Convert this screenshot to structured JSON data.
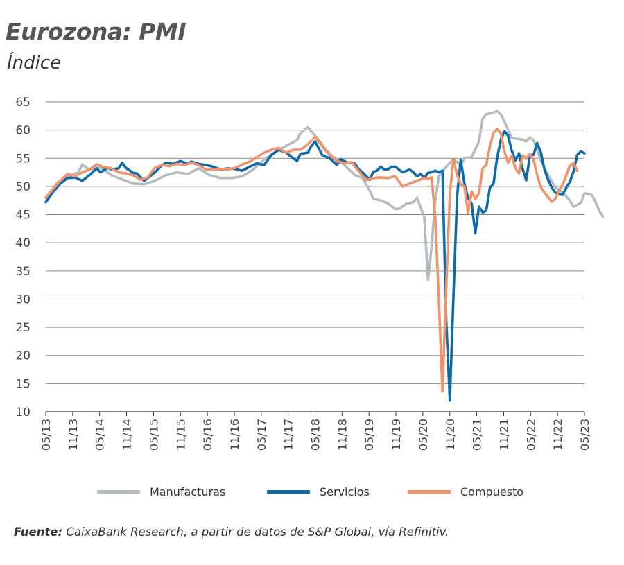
{
  "header": {
    "title": "Eurozona: PMI",
    "subtitle": "Índice"
  },
  "legend": {
    "items": [
      {
        "label": "Manufacturas",
        "color": "#b4bcbf"
      },
      {
        "label": "Servicios",
        "color": "#0f6aa9"
      },
      {
        "label": "Compuesto",
        "color": "#f0926a"
      }
    ]
  },
  "source": {
    "label": "Fuente:",
    "text": "CaixaBank Research, a partir de datos de S&P Global, vía Refinitiv."
  },
  "chart_data": {
    "type": "line",
    "title": "Eurozona: PMI",
    "ylabel": "Índice",
    "xlabel": "",
    "ylim": [
      10,
      65
    ],
    "yticks": [
      10,
      15,
      20,
      25,
      30,
      35,
      40,
      45,
      50,
      55,
      60,
      65
    ],
    "xticks": [
      "05/13",
      "11/13",
      "05/14",
      "11/14",
      "05/15",
      "11/15",
      "05/16",
      "11/16",
      "05/17",
      "11/17",
      "05/18",
      "11/18",
      "05/19",
      "11/19",
      "05/20",
      "11/20",
      "05/21",
      "11/21",
      "05/22",
      "11/22",
      "05/23"
    ],
    "grid": true,
    "legend_position": "bottom",
    "x_range": [
      "05/13",
      "05/23"
    ],
    "x": [
      0,
      4,
      8,
      13,
      18,
      24,
      30,
      36,
      42,
      48,
      54,
      60,
      66,
      72,
      78,
      84,
      90,
      96,
      102,
      108,
      114,
      120
    ],
    "series": [
      {
        "name": "Manufacturas",
        "color": "#b4bcbf",
        "points": [
          [
            0,
            48
          ],
          [
            1,
            48.8
          ],
          [
            3,
            50.5
          ],
          [
            6,
            51.8
          ],
          [
            9,
            52.5
          ],
          [
            10,
            53.9
          ],
          [
            12,
            53
          ],
          [
            15,
            53.4
          ],
          [
            18,
            52
          ],
          [
            20,
            51.5
          ],
          [
            24,
            50.5
          ],
          [
            27,
            50.4
          ],
          [
            30,
            51
          ],
          [
            33,
            52
          ],
          [
            36,
            52.5
          ],
          [
            39,
            52.2
          ],
          [
            42,
            53.2
          ],
          [
            45,
            52
          ],
          [
            48,
            51.5
          ],
          [
            51,
            51.5
          ],
          [
            54,
            51.8
          ],
          [
            57,
            53
          ],
          [
            60,
            54.8
          ],
          [
            63,
            56.1
          ],
          [
            66,
            57.2
          ],
          [
            69,
            58.2
          ],
          [
            70,
            59.5
          ],
          [
            72,
            60.5
          ],
          [
            74,
            59
          ],
          [
            75,
            58.2
          ],
          [
            77,
            56.5
          ],
          [
            79,
            55.2
          ],
          [
            81,
            54.5
          ],
          [
            83,
            53.2
          ],
          [
            85,
            52
          ],
          [
            87,
            51.5
          ],
          [
            89,
            49.2
          ],
          [
            90,
            47.8
          ],
          [
            92,
            47.5
          ],
          [
            94,
            47
          ],
          [
            96,
            46
          ],
          [
            97,
            46
          ],
          [
            99,
            46.9
          ],
          [
            101,
            47.2
          ],
          [
            102,
            48
          ],
          [
            104,
            44.5
          ],
          [
            105,
            33.4
          ],
          [
            106,
            39.4
          ],
          [
            107,
            47.4
          ],
          [
            108,
            51.8
          ],
          [
            110,
            53.5
          ],
          [
            112,
            54.8
          ],
          [
            114,
            53.8
          ],
          [
            115,
            55
          ],
          [
            117,
            55.2
          ],
          [
            119,
            58
          ],
          [
            120,
            62
          ],
          [
            121,
            62.8
          ],
          [
            123,
            63.1
          ],
          [
            124,
            63.4
          ],
          [
            125,
            62.8
          ],
          [
            126,
            61.5
          ],
          [
            128,
            58.6
          ],
          [
            130,
            58.4
          ],
          [
            131,
            58.3
          ],
          [
            132,
            58
          ],
          [
            133,
            58.7
          ],
          [
            134,
            58.2
          ],
          [
            135,
            56.5
          ],
          [
            136,
            54.6
          ],
          [
            138,
            52
          ],
          [
            140,
            49.8
          ],
          [
            142,
            49
          ],
          [
            144,
            47.5
          ],
          [
            145,
            46.4
          ],
          [
            147,
            47.1
          ],
          [
            148,
            48.8
          ],
          [
            150,
            48.5
          ],
          [
            151,
            47.3
          ],
          [
            152,
            45.8
          ],
          [
            153,
            44.6
          ]
        ]
      },
      {
        "name": "Servicios",
        "color": "#0f6aa9",
        "points": [
          [
            0,
            47.2
          ],
          [
            2,
            49
          ],
          [
            4,
            50.5
          ],
          [
            6,
            51.5
          ],
          [
            8,
            51.6
          ],
          [
            10,
            51
          ],
          [
            12,
            52
          ],
          [
            14,
            53.2
          ],
          [
            15,
            52.5
          ],
          [
            17,
            53.3
          ],
          [
            18,
            53
          ],
          [
            20,
            53.2
          ],
          [
            21,
            54.2
          ],
          [
            22,
            53.3
          ],
          [
            24,
            52.4
          ],
          [
            25,
            52.3
          ],
          [
            27,
            51
          ],
          [
            30,
            52.5
          ],
          [
            32,
            53.8
          ],
          [
            33,
            54.2
          ],
          [
            35,
            54
          ],
          [
            37,
            54.5
          ],
          [
            39,
            54
          ],
          [
            40,
            54.4
          ],
          [
            42,
            54
          ],
          [
            44,
            53.8
          ],
          [
            46,
            53.5
          ],
          [
            48,
            53
          ],
          [
            50,
            53.2
          ],
          [
            52,
            53.1
          ],
          [
            54,
            52.8
          ],
          [
            56,
            53.5
          ],
          [
            58,
            54.1
          ],
          [
            60,
            53.8
          ],
          [
            62,
            55.6
          ],
          [
            64,
            56.5
          ],
          [
            66,
            56
          ],
          [
            67,
            55.5
          ],
          [
            68,
            55
          ],
          [
            69,
            54.5
          ],
          [
            70,
            55.8
          ],
          [
            72,
            56
          ],
          [
            73,
            57.2
          ],
          [
            74,
            58
          ],
          [
            76,
            55.5
          ],
          [
            78,
            55
          ],
          [
            80,
            53.8
          ],
          [
            81,
            54.8
          ],
          [
            83,
            54.2
          ],
          [
            85,
            54
          ],
          [
            86,
            53
          ],
          [
            87,
            52.5
          ],
          [
            89,
            51.2
          ],
          [
            90,
            52.6
          ],
          [
            91,
            52.8
          ],
          [
            92,
            53.5
          ],
          [
            93,
            53
          ],
          [
            94,
            53
          ],
          [
            95,
            53.5
          ],
          [
            96,
            53.5
          ],
          [
            97,
            53
          ],
          [
            98,
            52.5
          ],
          [
            100,
            53
          ],
          [
            101,
            52.5
          ],
          [
            102,
            51.8
          ],
          [
            103,
            52.2
          ],
          [
            104,
            51.5
          ],
          [
            105,
            52.4
          ],
          [
            106,
            52.5
          ],
          [
            107,
            52.8
          ],
          [
            108,
            52.5
          ],
          [
            109,
            52.8
          ],
          [
            110,
            26.4
          ],
          [
            111,
            12
          ],
          [
            112,
            30.5
          ],
          [
            113,
            48.3
          ],
          [
            114,
            54.7
          ],
          [
            115,
            50.5
          ],
          [
            116,
            48
          ],
          [
            117,
            46.9
          ],
          [
            118,
            41.7
          ],
          [
            119,
            46.4
          ],
          [
            120,
            45.4
          ],
          [
            121,
            45.7
          ],
          [
            122,
            49.7
          ],
          [
            123,
            50.5
          ],
          [
            124,
            55.1
          ],
          [
            125,
            58.3
          ],
          [
            126,
            59.8
          ],
          [
            127,
            59
          ],
          [
            128,
            56.4
          ],
          [
            129,
            54.6
          ],
          [
            130,
            55.9
          ],
          [
            131,
            53.1
          ],
          [
            132,
            51.1
          ],
          [
            133,
            55.5
          ],
          [
            134,
            55.6
          ],
          [
            135,
            57.7
          ],
          [
            136,
            56.1
          ],
          [
            137,
            53
          ],
          [
            138,
            51.2
          ],
          [
            139,
            49.8
          ],
          [
            140,
            48.9
          ],
          [
            141,
            48.6
          ],
          [
            142,
            48.5
          ],
          [
            143,
            49.8
          ],
          [
            144,
            50.8
          ],
          [
            145,
            52.7
          ],
          [
            146,
            55.6
          ],
          [
            147,
            56.2
          ],
          [
            148,
            55.9
          ]
        ]
      },
      {
        "name": "Compuesto",
        "color": "#f0926a",
        "points": [
          [
            0,
            48
          ],
          [
            2,
            49.5
          ],
          [
            4,
            51
          ],
          [
            6,
            52.2
          ],
          [
            8,
            51.8
          ],
          [
            10,
            52.5
          ],
          [
            12,
            53
          ],
          [
            14,
            53.9
          ],
          [
            16,
            53.4
          ],
          [
            18,
            53.2
          ],
          [
            20,
            52.5
          ],
          [
            22,
            52.3
          ],
          [
            24,
            52
          ],
          [
            26,
            51.2
          ],
          [
            28,
            51.6
          ],
          [
            30,
            53.3
          ],
          [
            32,
            53.8
          ],
          [
            34,
            53.6
          ],
          [
            36,
            54
          ],
          [
            38,
            53.8
          ],
          [
            40,
            54.2
          ],
          [
            42,
            53.8
          ],
          [
            44,
            53
          ],
          [
            46,
            53
          ],
          [
            48,
            53.1
          ],
          [
            50,
            53
          ],
          [
            52,
            53.3
          ],
          [
            54,
            53.9
          ],
          [
            56,
            54.4
          ],
          [
            58,
            55.2
          ],
          [
            60,
            56
          ],
          [
            62,
            56.5
          ],
          [
            64,
            56.8
          ],
          [
            66,
            56
          ],
          [
            68,
            56.5
          ],
          [
            70,
            56.5
          ],
          [
            72,
            57.5
          ],
          [
            74,
            58.8
          ],
          [
            76,
            57.1
          ],
          [
            78,
            55.5
          ],
          [
            80,
            54.5
          ],
          [
            82,
            54.1
          ],
          [
            84,
            54.3
          ],
          [
            86,
            52.7
          ],
          [
            88,
            51.1
          ],
          [
            90,
            51.5
          ],
          [
            92,
            51.6
          ],
          [
            94,
            51.5
          ],
          [
            96,
            51.8
          ],
          [
            98,
            50
          ],
          [
            100,
            50.5
          ],
          [
            102,
            51
          ],
          [
            104,
            51.5
          ],
          [
            105,
            51.3
          ],
          [
            106,
            51.6
          ],
          [
            107,
            44.5
          ],
          [
            108,
            29.7
          ],
          [
            109,
            13.6
          ],
          [
            110,
            31.9
          ],
          [
            111,
            48.5
          ],
          [
            112,
            54.9
          ],
          [
            113,
            52
          ],
          [
            114,
            50.4
          ],
          [
            115,
            50
          ],
          [
            116,
            45.3
          ],
          [
            117,
            49.1
          ],
          [
            118,
            47.8
          ],
          [
            119,
            48.8
          ],
          [
            120,
            53.2
          ],
          [
            121,
            53.8
          ],
          [
            122,
            57.1
          ],
          [
            123,
            59.5
          ],
          [
            124,
            60.2
          ],
          [
            125,
            59.4
          ],
          [
            126,
            56.2
          ],
          [
            127,
            54.2
          ],
          [
            128,
            55.4
          ],
          [
            129,
            53.3
          ],
          [
            130,
            52.3
          ],
          [
            131,
            55.5
          ],
          [
            132,
            54.9
          ],
          [
            133,
            55.8
          ],
          [
            134,
            54.8
          ],
          [
            135,
            52
          ],
          [
            136,
            49.9
          ],
          [
            137,
            48.9
          ],
          [
            138,
            48.1
          ],
          [
            139,
            47.3
          ],
          [
            140,
            47.8
          ],
          [
            141,
            49.3
          ],
          [
            142,
            50.3
          ],
          [
            143,
            52
          ],
          [
            144,
            53.7
          ],
          [
            145,
            54.1
          ],
          [
            146,
            52.8
          ]
        ]
      }
    ]
  }
}
